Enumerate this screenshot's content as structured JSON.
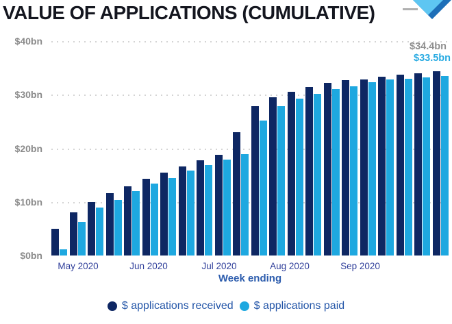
{
  "title": "VALUE OF APPLICATIONS (CUMULATIVE)",
  "axis": {
    "x_title": "Week ending"
  },
  "legend": {
    "received": "$ applications received",
    "paid": "$ applications paid"
  },
  "colors": {
    "received_bar": "#0E2763",
    "paid_bar": "#1EA8E0",
    "title_text": "#14161F",
    "y_axis_text": "#8A8A8A",
    "month_text": "#31409B",
    "axis_title_text": "#2C5CAD",
    "legend_text": "#2456A8",
    "grid_dots": "#D4D4D4",
    "logo_light": "#5EC6F2",
    "logo_dark": "#1E6FB8",
    "logo_dash": "#B0B0B0"
  },
  "chart_data": {
    "type": "bar",
    "title": "VALUE OF APPLICATIONS (CUMULATIVE)",
    "xlabel": "Week ending",
    "ylabel": "",
    "ylim": [
      0,
      40
    ],
    "ytick_values": [
      40,
      30,
      20,
      10,
      0
    ],
    "ytick_labels": [
      "$40bn",
      "$30bn",
      "$20bn",
      "$10bn",
      "$0bn"
    ],
    "x_unit": "week",
    "x_month_labels": [
      "May 2020",
      "Jun 2020",
      "Jul 2020",
      "Aug 2020",
      "Sep 2020"
    ],
    "grid": "horizontal-dotted",
    "legend_position": "bottom",
    "series": [
      {
        "name": "$ applications received",
        "color": "#0E2763",
        "values": [
          5.0,
          8.0,
          10.0,
          11.6,
          12.9,
          14.3,
          15.4,
          16.6,
          17.7,
          18.8,
          23.0,
          27.9,
          29.5,
          30.6,
          31.4,
          32.2,
          32.7,
          32.9,
          33.4,
          33.7,
          34.0,
          34.4
        ]
      },
      {
        "name": "$ applications paid",
        "color": "#1EA8E0",
        "values": [
          1.2,
          6.2,
          8.9,
          10.4,
          12.0,
          13.4,
          14.5,
          15.8,
          16.9,
          17.9,
          18.9,
          25.2,
          27.9,
          29.3,
          30.2,
          31.0,
          31.6,
          32.3,
          32.8,
          33.0,
          33.2,
          33.5
        ]
      }
    ],
    "end_labels": [
      {
        "text": "$34.4bn",
        "series": "$ applications received",
        "color": "#8F8F8F"
      },
      {
        "text": "$33.5bn",
        "series": "$ applications paid",
        "color": "#29ABE2"
      }
    ]
  }
}
